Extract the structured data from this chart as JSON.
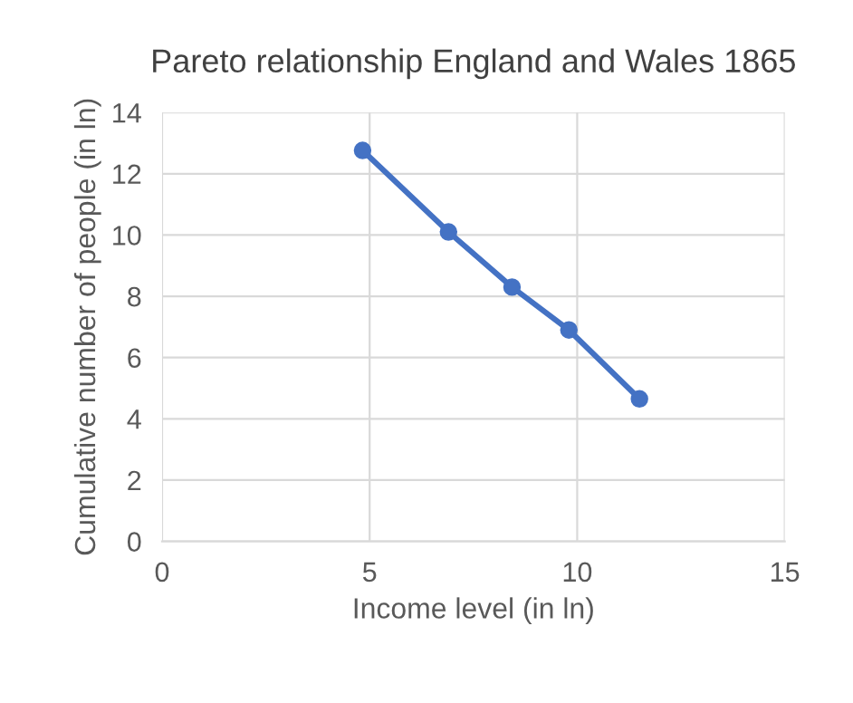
{
  "chart_data": {
    "type": "line",
    "title": "Pareto relationship England and Wales 1865",
    "xlabel": "Income level (in ln)",
    "ylabel": "Cumulative number of people (in ln)",
    "x": [
      4.83,
      6.9,
      8.43,
      9.8,
      11.5
    ],
    "series": [
      {
        "color": "#4472c4",
        "values": [
          12.76,
          10.1,
          8.3,
          6.9,
          4.65
        ]
      }
    ],
    "xlim": [
      0,
      15
    ],
    "xticks": [
      0,
      5,
      10,
      15
    ],
    "ylim": [
      0,
      14
    ],
    "yticks": [
      0,
      2,
      4,
      6,
      8,
      10,
      12,
      14
    ],
    "grid": true,
    "marker": "circle",
    "line_style": "solid"
  }
}
